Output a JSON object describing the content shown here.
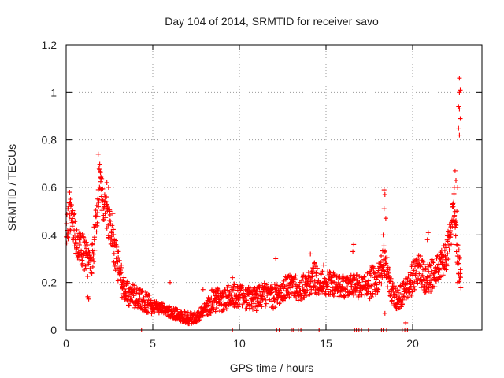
{
  "chart_data": {
    "type": "scatter",
    "title": "Day 104 of 2014, SRMTID for receiver savo",
    "xlabel": "GPS time / hours",
    "ylabel": "SRMTID / TECUs",
    "xlim": [
      0,
      24
    ],
    "ylim": [
      0,
      1.2
    ],
    "xticks": [
      0,
      5,
      10,
      15,
      20
    ],
    "xtick_labels": [
      "0",
      "5",
      "10",
      "15",
      "20"
    ],
    "yticks": [
      0,
      0.2,
      0.4,
      0.6,
      0.8,
      1.0,
      1.2
    ],
    "ytick_labels": [
      "0",
      "0.2",
      "0.4",
      "0.6",
      "0.8",
      "1",
      "1.2"
    ],
    "grid": true,
    "marker": "+",
    "color": "#ff0000",
    "series": [
      {
        "name": "SRMTID",
        "trend": [
          [
            0.0,
            0.4
          ],
          [
            0.2,
            0.48
          ],
          [
            0.4,
            0.45
          ],
          [
            0.6,
            0.36
          ],
          [
            0.9,
            0.34
          ],
          [
            1.2,
            0.3
          ],
          [
            1.4,
            0.26
          ],
          [
            1.6,
            0.36
          ],
          [
            1.8,
            0.5
          ],
          [
            1.95,
            0.66
          ],
          [
            2.1,
            0.54
          ],
          [
            2.3,
            0.5
          ],
          [
            2.5,
            0.44
          ],
          [
            2.7,
            0.36
          ],
          [
            2.9,
            0.3
          ],
          [
            3.1,
            0.24
          ],
          [
            3.3,
            0.18
          ],
          [
            3.6,
            0.15
          ],
          [
            4.0,
            0.14
          ],
          [
            4.5,
            0.12
          ],
          [
            5.0,
            0.1
          ],
          [
            5.5,
            0.09
          ],
          [
            6.0,
            0.08
          ],
          [
            6.5,
            0.06
          ],
          [
            7.0,
            0.05
          ],
          [
            7.5,
            0.05
          ],
          [
            8.0,
            0.09
          ],
          [
            8.5,
            0.13
          ],
          [
            9.0,
            0.12
          ],
          [
            9.5,
            0.15
          ],
          [
            10.0,
            0.14
          ],
          [
            10.5,
            0.13
          ],
          [
            11.0,
            0.13
          ],
          [
            11.5,
            0.15
          ],
          [
            12.0,
            0.14
          ],
          [
            12.5,
            0.17
          ],
          [
            13.0,
            0.19
          ],
          [
            13.5,
            0.17
          ],
          [
            14.0,
            0.2
          ],
          [
            14.5,
            0.22
          ],
          [
            15.0,
            0.2
          ],
          [
            15.5,
            0.19
          ],
          [
            16.0,
            0.18
          ],
          [
            16.5,
            0.19
          ],
          [
            17.0,
            0.18
          ],
          [
            17.5,
            0.2
          ],
          [
            18.0,
            0.2
          ],
          [
            18.4,
            0.3
          ],
          [
            18.6,
            0.22
          ],
          [
            18.9,
            0.14
          ],
          [
            19.2,
            0.13
          ],
          [
            19.6,
            0.17
          ],
          [
            20.0,
            0.22
          ],
          [
            20.4,
            0.25
          ],
          [
            20.8,
            0.2
          ],
          [
            21.2,
            0.24
          ],
          [
            21.6,
            0.27
          ],
          [
            21.9,
            0.3
          ],
          [
            22.2,
            0.4
          ],
          [
            22.4,
            0.55
          ],
          [
            22.6,
            0.3
          ],
          [
            22.8,
            0.22
          ]
        ],
        "spikes": [
          {
            "x": 1.85,
            "y": 0.74
          },
          {
            "x": 1.9,
            "y": 0.68
          },
          {
            "x": 2.0,
            "y": 0.64
          },
          {
            "x": 2.35,
            "y": 0.62
          },
          {
            "x": 2.45,
            "y": 0.6
          },
          {
            "x": 2.7,
            "y": 0.49
          },
          {
            "x": 0.2,
            "y": 0.58
          },
          {
            "x": 0.25,
            "y": 0.55
          },
          {
            "x": 0.1,
            "y": 0.51
          },
          {
            "x": 1.3,
            "y": 0.13
          },
          {
            "x": 1.25,
            "y": 0.14
          },
          {
            "x": 18.35,
            "y": 0.59
          },
          {
            "x": 18.4,
            "y": 0.57
          },
          {
            "x": 18.35,
            "y": 0.51
          },
          {
            "x": 18.45,
            "y": 0.47
          },
          {
            "x": 18.3,
            "y": 0.4
          },
          {
            "x": 18.4,
            "y": 0.07
          },
          {
            "x": 19.6,
            "y": 0.03
          },
          {
            "x": 22.45,
            "y": 0.67
          },
          {
            "x": 22.5,
            "y": 0.63
          },
          {
            "x": 22.4,
            "y": 0.6
          },
          {
            "x": 22.55,
            "y": 0.5
          },
          {
            "x": 22.5,
            "y": 0.46
          },
          {
            "x": 22.7,
            "y": 1.06
          },
          {
            "x": 22.75,
            "y": 1.01
          },
          {
            "x": 22.7,
            "y": 1.0
          },
          {
            "x": 22.65,
            "y": 0.94
          },
          {
            "x": 22.7,
            "y": 0.93
          },
          {
            "x": 22.75,
            "y": 0.89
          },
          {
            "x": 22.65,
            "y": 0.85
          },
          {
            "x": 22.7,
            "y": 0.82
          },
          {
            "x": 22.6,
            "y": 0.6
          },
          {
            "x": 22.65,
            "y": 0.28
          },
          {
            "x": 22.7,
            "y": 0.21
          },
          {
            "x": 22.6,
            "y": 0.2
          },
          {
            "x": 20.9,
            "y": 0.41
          },
          {
            "x": 20.85,
            "y": 0.38
          },
          {
            "x": 16.6,
            "y": 0.36
          },
          {
            "x": 16.55,
            "y": 0.33
          },
          {
            "x": 12.1,
            "y": 0.3
          },
          {
            "x": 14.1,
            "y": 0.32
          },
          {
            "x": 7.9,
            "y": 0.17
          },
          {
            "x": 6.0,
            "y": 0.2
          },
          {
            "x": 9.6,
            "y": 0.22
          }
        ],
        "zero_points": [
          4.35,
          9.6,
          12.15,
          12.3,
          13.0,
          13.1,
          13.4,
          13.55,
          14.6,
          16.65,
          16.75,
          16.9,
          17.05,
          17.45,
          18.2,
          18.3,
          18.5,
          19.4,
          19.55,
          19.7
        ]
      }
    ]
  }
}
